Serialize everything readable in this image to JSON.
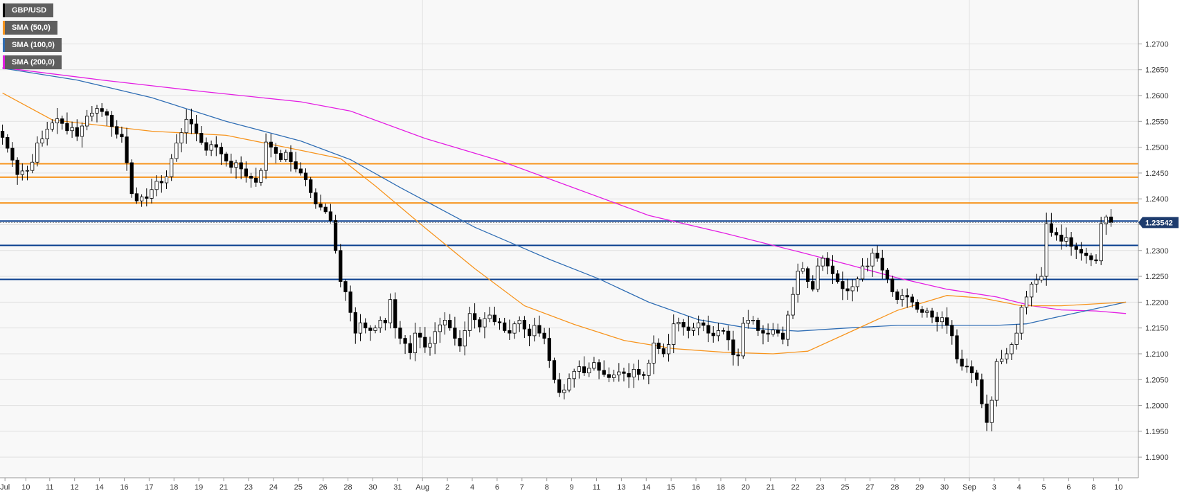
{
  "chart_data": {
    "type": "candlestick",
    "symbol": "GBP/USD",
    "legend": [
      {
        "label": "GBP/USD",
        "color": "#000000"
      },
      {
        "label": "SMA (50,0)",
        "color": "#f7941d"
      },
      {
        "label": "SMA (100,0)",
        "color": "#2f6db4"
      },
      {
        "label": "SMA (200,0)",
        "color": "#e41de3"
      }
    ],
    "legend_position": "top-left",
    "grid": true,
    "ylim": [
      1.186,
      1.2785
    ],
    "y_ticks": [
      "1.1900",
      "1.1950",
      "1.2000",
      "1.2050",
      "1.2100",
      "1.2150",
      "1.2200",
      "1.2250",
      "1.2300",
      "1.2350",
      "1.2400",
      "1.2450",
      "1.2500",
      "1.2550",
      "1.2600",
      "1.2650",
      "1.2700"
    ],
    "x_ticks": [
      {
        "label": "Jul",
        "i": 0.5
      },
      {
        "label": "10",
        "i": 4.7
      },
      {
        "label": "11",
        "i": 9.5
      },
      {
        "label": "12",
        "i": 14.5
      },
      {
        "label": "14",
        "i": 19.5
      },
      {
        "label": "16",
        "i": 24.5
      },
      {
        "label": "17",
        "i": 29.5
      },
      {
        "label": "18",
        "i": 34.5
      },
      {
        "label": "19",
        "i": 39.5
      },
      {
        "label": "21",
        "i": 44.5
      },
      {
        "label": "23",
        "i": 49.5
      },
      {
        "label": "24",
        "i": 54.5
      },
      {
        "label": "25",
        "i": 59.5
      },
      {
        "label": "26",
        "i": 64.5
      },
      {
        "label": "28",
        "i": 69.5
      },
      {
        "label": "30",
        "i": 74.5
      },
      {
        "label": "31",
        "i": 79.5
      },
      {
        "label": "Aug",
        "i": 84.5
      },
      {
        "label": "2",
        "i": 89.5
      },
      {
        "label": "4",
        "i": 94.5
      },
      {
        "label": "6",
        "i": 99.5
      },
      {
        "label": "7",
        "i": 104.5
      },
      {
        "label": "8",
        "i": 109.5
      },
      {
        "label": "9",
        "i": 114.5
      },
      {
        "label": "11",
        "i": 119.5
      },
      {
        "label": "13",
        "i": 124.5
      },
      {
        "label": "14",
        "i": 129.5
      },
      {
        "label": "15",
        "i": 134.5
      },
      {
        "label": "16",
        "i": 139.5
      },
      {
        "label": "18",
        "i": 144.5
      },
      {
        "label": "20",
        "i": 149.5
      },
      {
        "label": "21",
        "i": 154.5
      },
      {
        "label": "22",
        "i": 159.5
      },
      {
        "label": "23",
        "i": 164.5
      },
      {
        "label": "25",
        "i": 169.5
      },
      {
        "label": "27",
        "i": 174.5
      },
      {
        "label": "28",
        "i": 179.5
      },
      {
        "label": "29",
        "i": 184.5
      },
      {
        "label": "30",
        "i": 189.5
      },
      {
        "label": "Sep",
        "i": 194.5
      },
      {
        "label": "3",
        "i": 199.5
      },
      {
        "label": "4",
        "i": 204.5
      },
      {
        "label": "5",
        "i": 209.5
      },
      {
        "label": "6",
        "i": 214.5
      },
      {
        "label": "8",
        "i": 219.5
      },
      {
        "label": "10",
        "i": 224.5
      }
    ],
    "x_ticks_minor": [
      84.5,
      194.5
    ],
    "x_count": 229,
    "resistance_levels": [
      1.2468,
      1.2442,
      1.2392
    ],
    "support_levels": [
      1.2357,
      1.231,
      1.2244
    ],
    "current_price": {
      "value": 1.23542,
      "label": "1.23542"
    },
    "colors": {
      "support": "#0a3f8f",
      "resistance": "#f7941d",
      "sma50": "#f7941d",
      "sma100": "#2f6db4",
      "sma200": "#e41de3",
      "grid": "#e0e0e0",
      "bg": "#f8f8f8",
      "price_label_bg": "#1e3c6e"
    },
    "series_close": [
      1.2519,
      1.2498,
      1.2475,
      1.2447,
      1.2454,
      1.2455,
      1.2471,
      1.2508,
      1.2516,
      1.2535,
      1.2547,
      1.2555,
      1.2546,
      1.2532,
      1.2538,
      1.2521,
      1.2541,
      1.256,
      1.2566,
      1.2575,
      1.2569,
      1.2562,
      1.254,
      1.2525,
      1.252,
      1.247,
      1.241,
      1.2396,
      1.2404,
      1.2401,
      1.2418,
      1.2434,
      1.2431,
      1.2443,
      1.2478,
      1.2508,
      1.2528,
      1.2554,
      1.2545,
      1.2527,
      1.2509,
      1.2494,
      1.2505,
      1.25,
      1.2487,
      1.2473,
      1.2461,
      1.247,
      1.2458,
      1.2444,
      1.244,
      1.2432,
      1.2455,
      1.251,
      1.25,
      1.2488,
      1.2476,
      1.249,
      1.2472,
      1.2458,
      1.245,
      1.2437,
      1.2412,
      1.239,
      1.2384,
      1.2375,
      1.2358,
      1.23,
      1.224,
      1.222,
      1.218,
      1.214,
      1.216,
      1.215,
      1.2145,
      1.215,
      1.2165,
      1.216,
      1.2205,
      1.215,
      1.213,
      1.212,
      1.2102,
      1.214,
      1.2132,
      1.2113,
      1.212,
      1.2143,
      1.2156,
      1.2165,
      1.215,
      1.213,
      1.2115,
      1.2145,
      1.2178,
      1.2166,
      1.2152,
      1.2168,
      1.2175,
      1.2162,
      1.216,
      1.2145,
      1.214,
      1.2158,
      1.2165,
      1.2148,
      1.2135,
      1.2155,
      1.214,
      1.213,
      1.2087,
      1.205,
      1.2025,
      1.203,
      1.2052,
      1.2066,
      1.2075,
      1.2063,
      1.2072,
      1.2083,
      1.2068,
      1.206,
      1.2054,
      1.2059,
      1.2065,
      1.2062,
      1.2055,
      1.207,
      1.206,
      1.2058,
      1.2082,
      1.2121,
      1.211,
      1.21,
      1.2118,
      1.2158,
      1.2161,
      1.2152,
      1.2145,
      1.215,
      1.216,
      1.2155,
      1.214,
      1.2135,
      1.2145,
      1.2144,
      1.2127,
      1.2098,
      1.2096,
      1.2159,
      1.2165,
      1.2165,
      1.2145,
      1.214,
      1.2138,
      1.2146,
      1.214,
      1.2128,
      1.2175,
      1.2215,
      1.226,
      1.2265,
      1.224,
      1.2225,
      1.227,
      1.2285,
      1.227,
      1.2255,
      1.224,
      1.2226,
      1.2222,
      1.223,
      1.2245,
      1.227,
      1.227,
      1.2295,
      1.2285,
      1.2262,
      1.2245,
      1.222,
      1.2205,
      1.2213,
      1.221,
      1.22,
      1.2186,
      1.218,
      1.2183,
      1.2171,
      1.2162,
      1.217,
      1.2155,
      1.2135,
      1.209,
      1.2076,
      1.2075,
      1.2063,
      1.205,
      1.2003,
      1.1967,
      1.201,
      1.2085,
      1.209,
      1.21,
      1.2118,
      1.214,
      1.219,
      1.221,
      1.2235,
      1.2243,
      1.225,
      1.2352,
      1.2335,
      1.233,
      1.2318,
      1.2325,
      1.2308,
      1.2302,
      1.2295,
      1.229,
      1.2282,
      1.228,
      1.2352,
      1.2365,
      1.23542
    ],
    "sma50": [
      [
        0,
        1.2605
      ],
      [
        10,
        1.2553
      ],
      [
        30,
        1.2531
      ],
      [
        45,
        1.2523
      ],
      [
        60,
        1.2494
      ],
      [
        68,
        1.2478
      ],
      [
        75,
        1.2425
      ],
      [
        85,
        1.2344
      ],
      [
        95,
        1.2265
      ],
      [
        105,
        1.2193
      ],
      [
        115,
        1.2157
      ],
      [
        125,
        1.2126
      ],
      [
        135,
        1.211
      ],
      [
        145,
        1.2103
      ],
      [
        155,
        1.21
      ],
      [
        162,
        1.2105
      ],
      [
        170,
        1.214
      ],
      [
        180,
        1.2184
      ],
      [
        190,
        1.2213
      ],
      [
        197,
        1.2208
      ],
      [
        205,
        1.2193
      ],
      [
        213,
        1.2193
      ],
      [
        226,
        1.22
      ]
    ],
    "sma100": [
      [
        0,
        1.2653
      ],
      [
        15,
        1.263
      ],
      [
        30,
        1.2596
      ],
      [
        45,
        1.255
      ],
      [
        60,
        1.2512
      ],
      [
        70,
        1.2476
      ],
      [
        80,
        1.2422
      ],
      [
        95,
        1.2345
      ],
      [
        110,
        1.2283
      ],
      [
        120,
        1.2245
      ],
      [
        130,
        1.22
      ],
      [
        140,
        1.2166
      ],
      [
        150,
        1.215
      ],
      [
        160,
        1.2144
      ],
      [
        170,
        1.215
      ],
      [
        180,
        1.2155
      ],
      [
        190,
        1.2155
      ],
      [
        200,
        1.2155
      ],
      [
        206,
        1.2158
      ],
      [
        213,
        1.2173
      ],
      [
        226,
        1.22
      ]
    ],
    "sma200": [
      [
        0,
        1.2654
      ],
      [
        20,
        1.263
      ],
      [
        40,
        1.2608
      ],
      [
        60,
        1.2588
      ],
      [
        70,
        1.257
      ],
      [
        85,
        1.2517
      ],
      [
        100,
        1.2474
      ],
      [
        115,
        1.2421
      ],
      [
        130,
        1.2368
      ],
      [
        145,
        1.2334
      ],
      [
        160,
        1.2298
      ],
      [
        170,
        1.2273
      ],
      [
        180,
        1.2247
      ],
      [
        190,
        1.2225
      ],
      [
        200,
        1.221
      ],
      [
        207,
        1.2193
      ],
      [
        213,
        1.2185
      ],
      [
        220,
        1.2183
      ],
      [
        226,
        1.2178
      ]
    ]
  }
}
